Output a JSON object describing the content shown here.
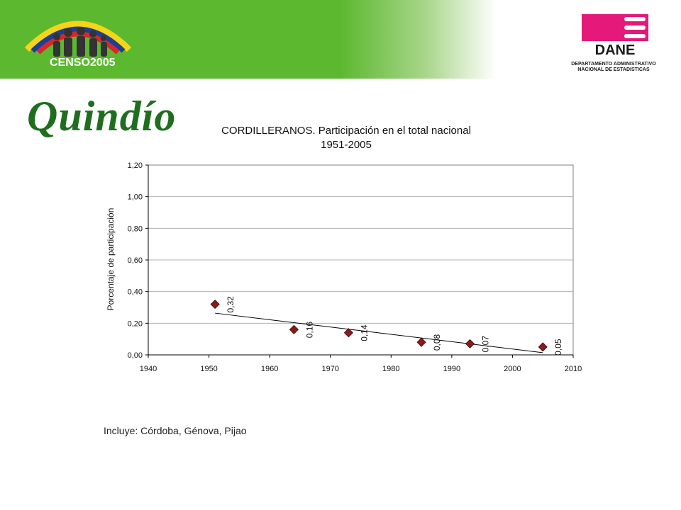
{
  "header": {
    "censo_logo_text": "CENSO2005",
    "dane_logo_text": "DANE",
    "dane_caption_line1": "DEPARTAMENTO ADMINISTRATIVO",
    "dane_caption_line2": "NACIONAL DE ESTADISTICAS"
  },
  "region_title": "Quindío",
  "footnote": "Incluye: Córdoba, Génova, Pijao",
  "chart_data": {
    "type": "scatter",
    "title_line1": "CORDILLERANOS. Participación en el total nacional",
    "title_line2": "1951-2005",
    "xlabel": "",
    "ylabel": "Porcentaje de participación",
    "xlim": [
      1940,
      2010
    ],
    "ylim": [
      0,
      1.2
    ],
    "x_ticks": [
      "1940",
      "1950",
      "1960",
      "1970",
      "1980",
      "1990",
      "2000",
      "2010"
    ],
    "y_ticks": [
      "0,00",
      "0,20",
      "0,40",
      "0,60",
      "0,80",
      "1,00",
      "1,20"
    ],
    "grid": "horizontal",
    "legend": "none",
    "trendline": "linear",
    "marker_color": "#8b1a1a",
    "points": [
      {
        "x": 1951,
        "y": 0.32,
        "label": "0,32"
      },
      {
        "x": 1964,
        "y": 0.16,
        "label": "0,16"
      },
      {
        "x": 1973,
        "y": 0.14,
        "label": "0,14"
      },
      {
        "x": 1985,
        "y": 0.08,
        "label": "0,08"
      },
      {
        "x": 1993,
        "y": 0.07,
        "label": "0,07"
      },
      {
        "x": 2005,
        "y": 0.05,
        "label": "0,05"
      }
    ]
  }
}
